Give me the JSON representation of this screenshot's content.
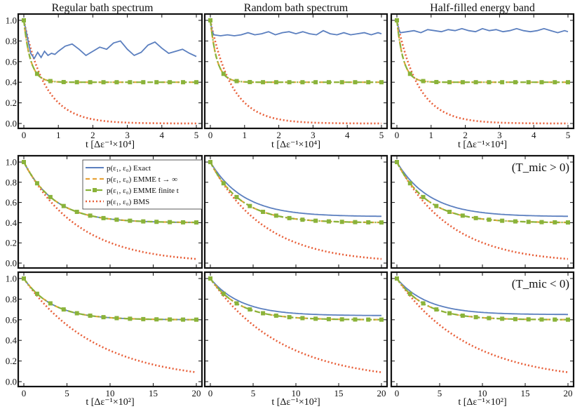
{
  "figure": {
    "column_titles": [
      "Regular bath spectrum",
      "Random bath spectrum",
      "Half-filled energy band"
    ],
    "row_annotations": [
      "",
      "(T_mic > 0)",
      "(T_mic < 0)"
    ],
    "xlabel_top": "t [Δε⁻¹×10⁴]",
    "xlabel_bottom": "t [Δε⁻¹×10²]"
  },
  "legend": [
    {
      "label": "p(ε₁, ε₀)  Exact",
      "color": "#5b7fbf",
      "style": "solid"
    },
    {
      "label": "p(ε₁, ε₀)  EMME t → ∞",
      "color": "#e8a33a",
      "style": "dashed"
    },
    {
      "label": "p(ε₁, ε₀)  EMME finite t",
      "color": "#8ab33a",
      "style": "dashdot-square"
    },
    {
      "label": "p(ε₁, ε₀)  BMS",
      "color": "#e8603a",
      "style": "dotted"
    }
  ],
  "colors": {
    "exact": "#5b7fbf",
    "emme_inf": "#e8a33a",
    "emme_fin": "#8ab33a",
    "bms": "#e8603a"
  },
  "chart_data": [
    {
      "type": "line",
      "row": 0,
      "col": 0,
      "title": "Regular bath spectrum",
      "xlabel": "t [Δε⁻¹×10⁴]",
      "xlim": [
        0,
        5
      ],
      "ylim": [
        0,
        1
      ],
      "xticks": [
        "0",
        "1",
        "2",
        "3",
        "4",
        "5"
      ],
      "yticks": [
        "0.0",
        "0.2",
        "0.4",
        "0.6",
        "0.8",
        "1.0"
      ],
      "series": [
        {
          "name": "Exact",
          "x": [
            0,
            0.1,
            0.2,
            0.3,
            0.4,
            0.5,
            0.6,
            0.7,
            0.8,
            0.9,
            1,
            1.2,
            1.4,
            1.6,
            1.8,
            2,
            2.2,
            2.4,
            2.6,
            2.8,
            3,
            3.2,
            3.4,
            3.6,
            3.8,
            4,
            4.2,
            4.4,
            4.6,
            4.8,
            5
          ],
          "y": [
            1,
            0.84,
            0.68,
            0.63,
            0.69,
            0.64,
            0.7,
            0.66,
            0.68,
            0.67,
            0.7,
            0.75,
            0.77,
            0.72,
            0.66,
            0.7,
            0.74,
            0.72,
            0.78,
            0.8,
            0.72,
            0.66,
            0.69,
            0.76,
            0.79,
            0.73,
            0.68,
            0.7,
            0.72,
            0.68,
            0.65
          ]
        },
        {
          "name": "EMME t→∞",
          "asymptote": 0.4,
          "rate": 5.2
        },
        {
          "name": "EMME finite t",
          "asymptote": 0.4,
          "rate": 5.2
        },
        {
          "name": "BMS",
          "asymptote": 0.0,
          "rate": 1.6
        }
      ]
    },
    {
      "type": "line",
      "row": 0,
      "col": 1,
      "title": "Random bath spectrum",
      "xlabel": "t [Δε⁻¹×10⁴]",
      "xlim": [
        0,
        5
      ],
      "ylim": [
        0,
        1
      ],
      "xticks": [
        "0",
        "1",
        "2",
        "3",
        "4",
        "5"
      ],
      "yticks": [
        "0.0",
        "0.2",
        "0.4",
        "0.6",
        "0.8",
        "1.0"
      ],
      "series": [
        {
          "name": "Exact",
          "x": [
            0,
            0.05,
            0.1,
            0.3,
            0.5,
            0.7,
            0.9,
            1.1,
            1.3,
            1.5,
            1.7,
            1.9,
            2.1,
            2.3,
            2.5,
            2.7,
            2.9,
            3.1,
            3.3,
            3.5,
            3.7,
            3.9,
            4.1,
            4.3,
            4.5,
            4.7,
            4.9,
            5
          ],
          "y": [
            1,
            0.9,
            0.86,
            0.85,
            0.86,
            0.85,
            0.86,
            0.88,
            0.86,
            0.87,
            0.89,
            0.86,
            0.88,
            0.89,
            0.87,
            0.89,
            0.87,
            0.86,
            0.9,
            0.87,
            0.86,
            0.88,
            0.86,
            0.87,
            0.88,
            0.86,
            0.88,
            0.87
          ]
        },
        {
          "name": "EMME t→∞",
          "asymptote": 0.4,
          "rate": 5.2
        },
        {
          "name": "EMME finite t",
          "asymptote": 0.4,
          "rate": 5.2
        },
        {
          "name": "BMS",
          "asymptote": 0.0,
          "rate": 1.6
        }
      ]
    },
    {
      "type": "line",
      "row": 0,
      "col": 2,
      "title": "Half-filled energy band",
      "xlabel": "t [Δε⁻¹×10⁴]",
      "xlim": [
        0,
        5
      ],
      "ylim": [
        0,
        1
      ],
      "xticks": [
        "0",
        "1",
        "2",
        "3",
        "4",
        "5"
      ],
      "yticks": [
        "0.0",
        "0.2",
        "0.4",
        "0.6",
        "0.8",
        "1.0"
      ],
      "series": [
        {
          "name": "Exact",
          "x": [
            0,
            0.05,
            0.1,
            0.3,
            0.5,
            0.7,
            0.9,
            1.1,
            1.3,
            1.5,
            1.7,
            1.9,
            2.1,
            2.3,
            2.5,
            2.7,
            2.9,
            3.1,
            3.3,
            3.5,
            3.7,
            3.9,
            4.1,
            4.3,
            4.5,
            4.7,
            4.9,
            5
          ],
          "y": [
            1,
            0.92,
            0.88,
            0.89,
            0.9,
            0.88,
            0.91,
            0.9,
            0.89,
            0.91,
            0.9,
            0.92,
            0.9,
            0.89,
            0.92,
            0.9,
            0.91,
            0.89,
            0.9,
            0.92,
            0.9,
            0.89,
            0.9,
            0.92,
            0.9,
            0.88,
            0.9,
            0.89
          ]
        },
        {
          "name": "EMME t→∞",
          "asymptote": 0.4,
          "rate": 5.2
        },
        {
          "name": "EMME finite t",
          "asymptote": 0.4,
          "rate": 5.2
        },
        {
          "name": "BMS",
          "asymptote": 0.0,
          "rate": 1.6
        }
      ]
    },
    {
      "type": "line",
      "row": 1,
      "col": 0,
      "xlim": [
        0,
        20
      ],
      "ylim": [
        0,
        1
      ],
      "xticks": [
        "0",
        "5",
        "10",
        "15",
        "20"
      ],
      "yticks": [
        "0.0",
        "0.2",
        "0.4",
        "0.6",
        "0.8",
        "1.0"
      ],
      "series": [
        {
          "name": "Exact",
          "asymptote": 0.4,
          "rate": 0.28
        },
        {
          "name": "EMME t→∞",
          "asymptote": 0.4,
          "rate": 0.28
        },
        {
          "name": "EMME finite t",
          "asymptote": 0.4,
          "rate": 0.28
        },
        {
          "name": "BMS",
          "asymptote": 0.0,
          "rate": 0.16
        }
      ]
    },
    {
      "type": "line",
      "row": 1,
      "col": 1,
      "xlim": [
        0,
        20
      ],
      "ylim": [
        0,
        1
      ],
      "xticks": [
        "0",
        "5",
        "10",
        "15",
        "20"
      ],
      "yticks": [
        "0.0",
        "0.2",
        "0.4",
        "0.6",
        "0.8",
        "1.0"
      ],
      "series": [
        {
          "name": "Exact",
          "asymptote": 0.46,
          "rate": 0.26
        },
        {
          "name": "EMME t→∞",
          "asymptote": 0.4,
          "rate": 0.28
        },
        {
          "name": "EMME finite t",
          "asymptote": 0.4,
          "rate": 0.28
        },
        {
          "name": "BMS",
          "asymptote": 0.0,
          "rate": 0.16
        }
      ]
    },
    {
      "type": "line",
      "row": 1,
      "col": 2,
      "xlim": [
        0,
        20
      ],
      "ylim": [
        0,
        1
      ],
      "xticks": [
        "0",
        "5",
        "10",
        "15",
        "20"
      ],
      "yticks": [
        "0.0",
        "0.2",
        "0.4",
        "0.6",
        "0.8",
        "1.0"
      ],
      "series": [
        {
          "name": "Exact",
          "asymptote": 0.46,
          "rate": 0.26
        },
        {
          "name": "EMME t→∞",
          "asymptote": 0.4,
          "rate": 0.28
        },
        {
          "name": "EMME finite t",
          "asymptote": 0.4,
          "rate": 0.28
        },
        {
          "name": "BMS",
          "asymptote": 0.0,
          "rate": 0.16
        }
      ]
    },
    {
      "type": "line",
      "row": 2,
      "col": 0,
      "xlim": [
        0,
        20
      ],
      "ylim": [
        0,
        1
      ],
      "xticks": [
        "0",
        "5",
        "10",
        "15",
        "20"
      ],
      "yticks": [
        "0.0",
        "0.2",
        "0.4",
        "0.6",
        "0.8",
        "1.0"
      ],
      "series": [
        {
          "name": "Exact",
          "asymptote": 0.6,
          "rate": 0.3
        },
        {
          "name": "EMME t→∞",
          "asymptote": 0.6,
          "rate": 0.3
        },
        {
          "name": "EMME finite t",
          "asymptote": 0.6,
          "rate": 0.3
        },
        {
          "name": "BMS",
          "asymptote": 0.0,
          "rate": 0.12
        }
      ]
    },
    {
      "type": "line",
      "row": 2,
      "col": 1,
      "xlim": [
        0,
        20
      ],
      "ylim": [
        0,
        1
      ],
      "xticks": [
        "0",
        "5",
        "10",
        "15",
        "20"
      ],
      "yticks": [
        "0.0",
        "0.2",
        "0.4",
        "0.6",
        "0.8",
        "1.0"
      ],
      "series": [
        {
          "name": "Exact",
          "asymptote": 0.64,
          "rate": 0.28
        },
        {
          "name": "EMME t→∞",
          "asymptote": 0.6,
          "rate": 0.3
        },
        {
          "name": "EMME finite t",
          "asymptote": 0.6,
          "rate": 0.3
        },
        {
          "name": "BMS",
          "asymptote": 0.0,
          "rate": 0.12
        }
      ]
    },
    {
      "type": "line",
      "row": 2,
      "col": 2,
      "xlim": [
        0,
        20
      ],
      "ylim": [
        0,
        1
      ],
      "xticks": [
        "0",
        "5",
        "10",
        "15",
        "20"
      ],
      "yticks": [
        "0.0",
        "0.2",
        "0.4",
        "0.6",
        "0.8",
        "1.0"
      ],
      "series": [
        {
          "name": "Exact",
          "asymptote": 0.65,
          "rate": 0.28
        },
        {
          "name": "EMME t→∞",
          "asymptote": 0.6,
          "rate": 0.3
        },
        {
          "name": "EMME finite t",
          "asymptote": 0.6,
          "rate": 0.3
        },
        {
          "name": "BMS",
          "asymptote": 0.0,
          "rate": 0.12
        }
      ]
    }
  ]
}
